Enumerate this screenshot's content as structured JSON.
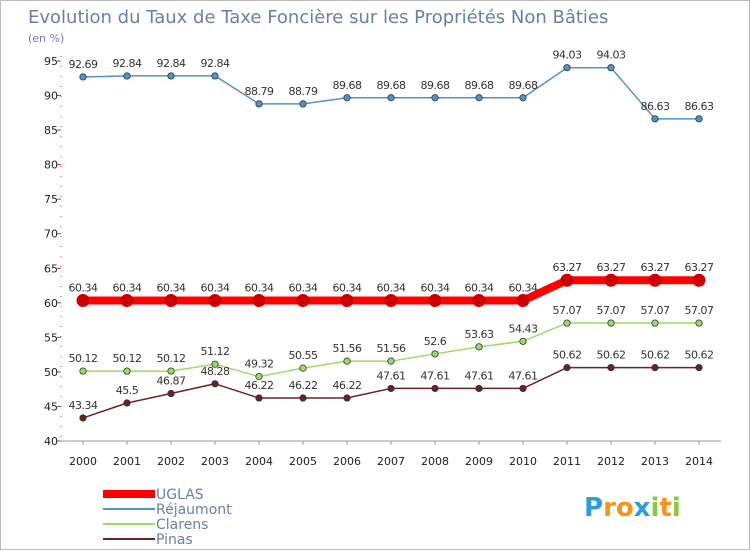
{
  "chart_data": {
    "type": "line",
    "title": "Evolution du Taux de Taxe Foncière sur les Propriétés Non Bâties",
    "subtitle": "(en %)",
    "xlabel": "",
    "ylabel": "",
    "categories": [
      "2000",
      "2001",
      "2002",
      "2003",
      "2004",
      "2005",
      "2006",
      "2007",
      "2008",
      "2009",
      "2010",
      "2011",
      "2012",
      "2013",
      "2014"
    ],
    "ylim": [
      40,
      95
    ],
    "yticks": [
      40,
      45,
      50,
      55,
      60,
      65,
      70,
      75,
      80,
      85,
      90,
      95
    ],
    "grid": false,
    "legend_position": "bottom-left",
    "series": [
      {
        "name": "UGLAS",
        "color": "#ff0000",
        "values": [
          60.34,
          60.34,
          60.34,
          60.34,
          60.34,
          60.34,
          60.34,
          60.34,
          60.34,
          60.34,
          60.34,
          63.27,
          63.27,
          63.27,
          63.27
        ],
        "labels": [
          "60.34",
          "60.34",
          "60.34",
          "60.34",
          "60.34",
          "60.34",
          "60.34",
          "60.34",
          "60.34",
          "60.34",
          "60.34",
          "63.27",
          "63.27",
          "63.27",
          "63.27"
        ]
      },
      {
        "name": "Réjaumont",
        "color": "#4f94cd",
        "values": [
          92.69,
          92.84,
          92.84,
          92.84,
          88.79,
          88.79,
          89.68,
          89.68,
          89.68,
          89.68,
          89.68,
          94.03,
          94.03,
          86.63,
          86.63
        ],
        "labels": [
          "92.69",
          "92.84",
          "92.84",
          "92.84",
          "88.79",
          "88.79",
          "89.68",
          "89.68",
          "89.68",
          "89.68",
          "89.68",
          "94.03",
          "94.03",
          "86.63",
          "86.63"
        ]
      },
      {
        "name": "Clarens",
        "color": "#99dd66",
        "values": [
          50.12,
          50.12,
          50.12,
          51.12,
          49.32,
          50.55,
          51.56,
          51.56,
          52.6,
          53.63,
          54.43,
          57.07,
          57.07,
          57.07,
          57.07
        ],
        "labels": [
          "50.12",
          "50.12",
          "50.12",
          "51.12",
          "49.32",
          "50.55",
          "51.56",
          "51.56",
          "52.6",
          "53.63",
          "54.43",
          "57.07",
          "57.07",
          "57.07",
          "57.07"
        ]
      },
      {
        "name": "Pinas",
        "color": "#6b2222",
        "values": [
          43.34,
          45.5,
          46.87,
          48.28,
          46.22,
          46.22,
          46.22,
          47.61,
          47.61,
          47.61,
          47.61,
          50.62,
          50.62,
          50.62,
          50.62
        ],
        "labels": [
          "43.34",
          "45.5",
          "46.87",
          "48.28",
          "46.22",
          "46.22",
          "46.22",
          "47.61",
          "47.61",
          "47.61",
          "47.61",
          "50.62",
          "50.62",
          "50.62",
          "50.62"
        ]
      }
    ]
  },
  "branding": {
    "logo_letters": [
      "P",
      "r",
      "o",
      "x",
      "i",
      "t",
      "i"
    ],
    "logo_colors": [
      "#2b9fd8",
      "#f7941d",
      "#f7941d",
      "#2b9fd8",
      "#8dc63f",
      "#f7941d",
      "#8dc63f"
    ]
  }
}
